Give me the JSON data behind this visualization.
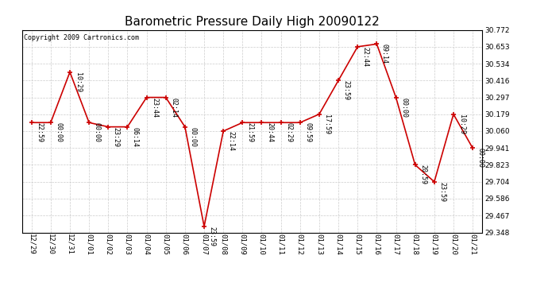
{
  "title": "Barometric Pressure Daily High 20090122",
  "copyright": "Copyright 2009 Cartronics.com",
  "x_labels": [
    "12/29",
    "12/30",
    "12/31",
    "01/01",
    "01/02",
    "01/03",
    "01/04",
    "01/05",
    "01/06",
    "01/07",
    "01/08",
    "01/09",
    "01/10",
    "01/11",
    "01/12",
    "01/13",
    "01/14",
    "01/15",
    "01/16",
    "01/17",
    "01/18",
    "01/19",
    "01/20",
    "01/21"
  ],
  "y_values": [
    30.12,
    30.12,
    30.475,
    30.12,
    30.09,
    30.09,
    30.297,
    30.297,
    30.09,
    29.39,
    30.06,
    30.12,
    30.12,
    30.12,
    30.12,
    30.179,
    30.416,
    30.653,
    30.672,
    30.297,
    29.823,
    29.704,
    30.179,
    29.941
  ],
  "point_labels": [
    "22:59",
    "00:00",
    "10:29",
    "00:00",
    "23:29",
    "06:14",
    "23:44",
    "02:14",
    "00:00",
    "23:59",
    "22:14",
    "21:59",
    "20:44",
    "02:29",
    "09:59",
    "17:59",
    "23:59",
    "22:44",
    "09:14",
    "00:00",
    "20:59",
    "23:59",
    "10:29",
    "00:00"
  ],
  "y_min": 29.348,
  "y_max": 30.772,
  "y_ticks": [
    29.348,
    29.467,
    29.586,
    29.704,
    29.823,
    29.941,
    30.06,
    30.179,
    30.297,
    30.416,
    30.534,
    30.653,
    30.772
  ],
  "line_color": "#cc0000",
  "marker_color": "#cc0000",
  "background_color": "#ffffff",
  "grid_color": "#cccccc",
  "title_fontsize": 11,
  "label_fontsize": 6,
  "tick_fontsize": 6.5,
  "copyright_fontsize": 6
}
